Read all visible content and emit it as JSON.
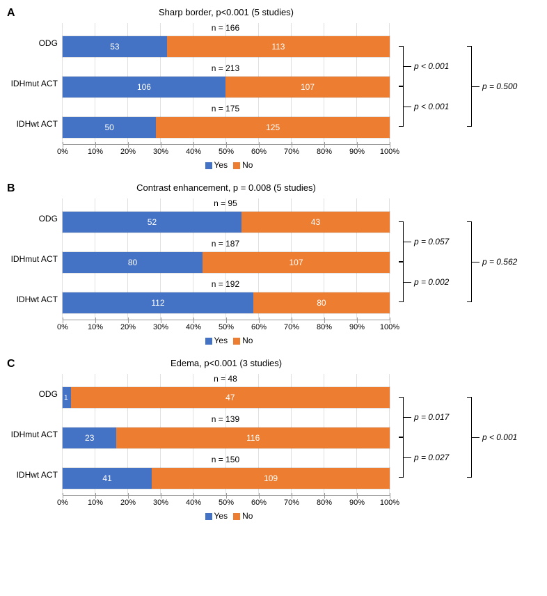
{
  "colors": {
    "yes": "#4472c4",
    "no": "#ed7d31",
    "grid": "#e0e0e0",
    "axis": "#999999",
    "text_white": "#ffffff"
  },
  "x_ticks": [
    "0%",
    "10%",
    "20%",
    "30%",
    "40%",
    "50%",
    "60%",
    "70%",
    "80%",
    "90%",
    "100%"
  ],
  "legend": {
    "yes": "Yes",
    "no": "No"
  },
  "panels": [
    {
      "letter": "A",
      "title": "Sharp border, p<0.001 (5 studies)",
      "rows": [
        {
          "label": "ODG",
          "n": "n = 166",
          "yes": 53,
          "no": 113,
          "yes_pct": 31.9,
          "no_pct": 68.1
        },
        {
          "label": "IDHmut ACT",
          "n": "n = 213",
          "yes": 106,
          "no": 107,
          "yes_pct": 49.8,
          "no_pct": 50.2
        },
        {
          "label": "IDHwt ACT",
          "n": "n = 175",
          "yes": 50,
          "no": 125,
          "yes_pct": 28.6,
          "no_pct": 71.4
        }
      ],
      "pvals": {
        "pair_top": "p < 0.001",
        "pair_bottom": "p < 0.001",
        "outer": "p = 0.500"
      }
    },
    {
      "letter": "B",
      "title": "Contrast enhancement, p = 0.008 (5 studies)",
      "rows": [
        {
          "label": "ODG",
          "n": "n = 95",
          "yes": 52,
          "no": 43,
          "yes_pct": 54.7,
          "no_pct": 45.3
        },
        {
          "label": "IDHmut ACT",
          "n": "n = 187",
          "yes": 80,
          "no": 107,
          "yes_pct": 42.8,
          "no_pct": 57.2
        },
        {
          "label": "IDHwt ACT",
          "n": "n = 192",
          "yes": 112,
          "no": 80,
          "yes_pct": 58.3,
          "no_pct": 41.7
        }
      ],
      "pvals": {
        "pair_top": "p = 0.057",
        "pair_bottom": "p = 0.002",
        "outer": "p = 0.562"
      }
    },
    {
      "letter": "C",
      "title": "Edema, p<0.001 (3 studies)",
      "rows": [
        {
          "label": "ODG",
          "n": "n = 48",
          "yes": 1,
          "no": 47,
          "yes_pct": 2.1,
          "no_pct": 97.9
        },
        {
          "label": "IDHmut ACT",
          "n": "n = 139",
          "yes": 23,
          "no": 116,
          "yes_pct": 16.5,
          "no_pct": 83.5
        },
        {
          "label": "IDHwt ACT",
          "n": "n = 150",
          "yes": 41,
          "no": 109,
          "yes_pct": 27.3,
          "no_pct": 72.7
        }
      ],
      "pvals": {
        "pair_top": "p = 0.017",
        "pair_bottom": "p = 0.027",
        "outer": "p < 0.001"
      }
    }
  ]
}
